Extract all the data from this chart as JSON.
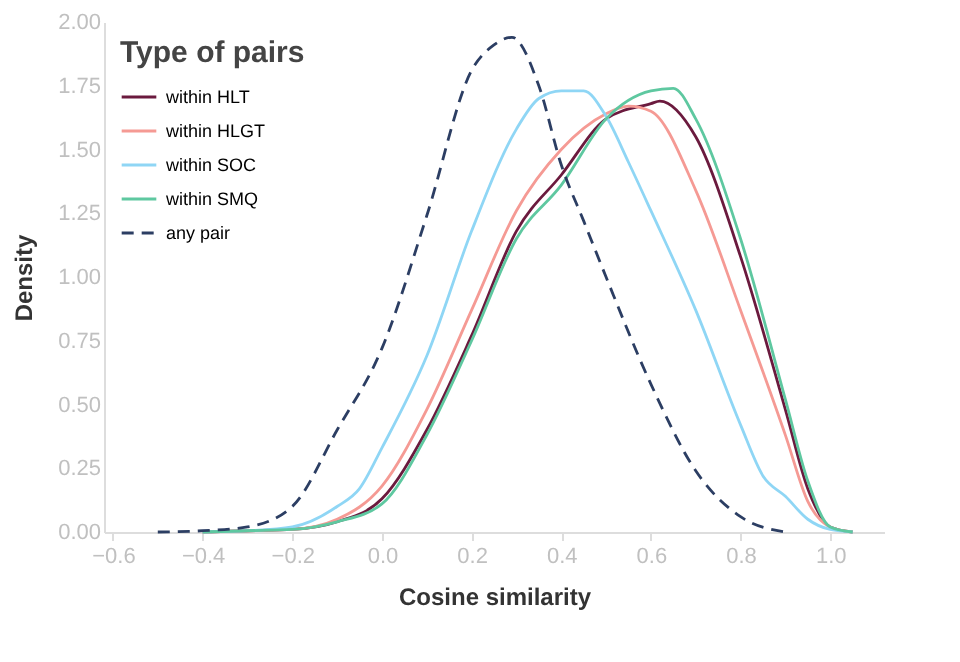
{
  "chart_data": {
    "type": "line",
    "xlabel": "Cosine similarity",
    "ylabel": "Density",
    "legend_title": "Type of pairs",
    "legend": "top left",
    "grid": false,
    "marker": "none",
    "xlim": [
      -0.62,
      1.12
    ],
    "ylim": [
      0,
      2.0
    ],
    "xticks": [
      {
        "value": -0.6,
        "label": "−0.6"
      },
      {
        "value": -0.4,
        "label": "−0.4"
      },
      {
        "value": -0.2,
        "label": "−0.2"
      },
      {
        "value": 0,
        "label": "0.0"
      },
      {
        "value": 0.2,
        "label": "0.2"
      },
      {
        "value": 0.4,
        "label": "0.4"
      },
      {
        "value": 0.6,
        "label": "0.6"
      },
      {
        "value": 0.8,
        "label": "0.8"
      },
      {
        "value": 1.0,
        "label": "1.0"
      }
    ],
    "yticks": [
      {
        "value": 0,
        "label": "0.00"
      },
      {
        "value": 0.25,
        "label": "0.25"
      },
      {
        "value": 0.5,
        "label": "0.50"
      },
      {
        "value": 0.75,
        "label": "0.75"
      },
      {
        "value": 1.0,
        "label": "1.00"
      },
      {
        "value": 1.25,
        "label": "1.25"
      },
      {
        "value": 1.5,
        "label": "1.50"
      },
      {
        "value": 1.75,
        "label": "1.75"
      },
      {
        "value": 2.0,
        "label": "2.00"
      }
    ],
    "series": [
      {
        "name": "within HLT",
        "color": "#6b1a3e",
        "line_style": "solid",
        "x": [
          -0.4,
          -0.3,
          -0.2,
          -0.1,
          0.0,
          0.1,
          0.2,
          0.3,
          0.4,
          0.5,
          0.6,
          0.62,
          0.7,
          0.8,
          0.9,
          0.95,
          1.0,
          1.05
        ],
        "values": [
          0.0,
          0.005,
          0.01,
          0.04,
          0.13,
          0.4,
          0.77,
          1.18,
          1.4,
          1.62,
          1.68,
          1.69,
          1.55,
          1.08,
          0.48,
          0.17,
          0.02,
          0.0
        ]
      },
      {
        "name": "within HLGT",
        "color": "#f59a94",
        "line_style": "solid",
        "x": [
          -0.4,
          -0.3,
          -0.2,
          -0.1,
          0.0,
          0.1,
          0.2,
          0.3,
          0.4,
          0.5,
          0.55,
          0.6,
          0.7,
          0.8,
          0.9,
          0.95,
          1.0,
          1.05
        ],
        "values": [
          0.0,
          0.005,
          0.01,
          0.05,
          0.18,
          0.48,
          0.87,
          1.26,
          1.5,
          1.64,
          1.67,
          1.65,
          1.34,
          0.87,
          0.38,
          0.12,
          0.02,
          0.0
        ]
      },
      {
        "name": "within SOC",
        "color": "#8fd6f5",
        "line_style": "solid",
        "x": [
          -0.4,
          -0.3,
          -0.2,
          -0.1,
          -0.05,
          0.0,
          0.1,
          0.2,
          0.3,
          0.35,
          0.4,
          0.45,
          0.5,
          0.55,
          0.6,
          0.7,
          0.8,
          0.85,
          0.9,
          0.95,
          1.0,
          1.05
        ],
        "values": [
          0.0,
          0.005,
          0.02,
          0.1,
          0.17,
          0.33,
          0.69,
          1.18,
          1.58,
          1.7,
          1.73,
          1.73,
          1.63,
          1.45,
          1.26,
          0.87,
          0.42,
          0.22,
          0.14,
          0.05,
          0.01,
          0.0
        ]
      },
      {
        "name": "within SMQ",
        "color": "#5ec8a0",
        "line_style": "solid",
        "x": [
          -0.4,
          -0.3,
          -0.2,
          -0.1,
          0.0,
          0.1,
          0.2,
          0.3,
          0.4,
          0.5,
          0.6,
          0.65,
          0.7,
          0.8,
          0.9,
          0.95,
          1.0,
          1.05
        ],
        "values": [
          0.0,
          0.005,
          0.01,
          0.04,
          0.11,
          0.38,
          0.75,
          1.15,
          1.36,
          1.62,
          1.73,
          1.74,
          1.62,
          1.15,
          0.52,
          0.2,
          0.02,
          0.0
        ]
      },
      {
        "name": "any pair",
        "color": "#2c3e63",
        "line_style": "dashed",
        "x": [
          -0.5,
          -0.4,
          -0.3,
          -0.2,
          -0.1,
          0.0,
          0.1,
          0.2,
          0.25,
          0.29,
          0.35,
          0.4,
          0.45,
          0.5,
          0.6,
          0.7,
          0.8,
          0.9
        ],
        "values": [
          0.0,
          0.005,
          0.02,
          0.1,
          0.4,
          0.72,
          1.24,
          1.81,
          1.91,
          1.94,
          1.75,
          1.44,
          1.22,
          1.0,
          0.58,
          0.24,
          0.06,
          0.0
        ]
      }
    ]
  }
}
